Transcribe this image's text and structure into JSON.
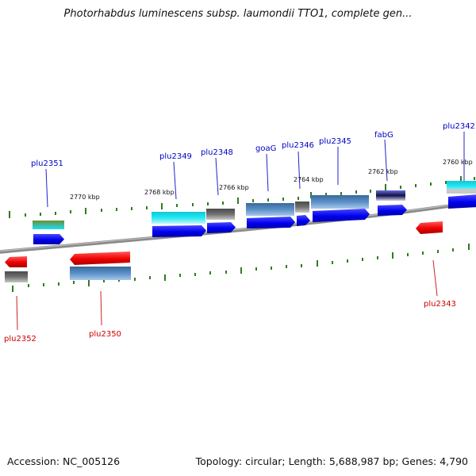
{
  "title": "Photorhabdus luminescens subsp. laumondii TTO1, complete gen...",
  "footer": {
    "accession": "Accession: NC_005126",
    "summary": "Topology: circular; Length: 5,688,987 bp; Genes: 4,790"
  },
  "colors": {
    "backbone": "#8c8c8c",
    "tick": "#2e7d1e",
    "forward_label": "#0000c8",
    "reverse_label": "#cc0000",
    "forward_gene": "#0000ee",
    "reverse_gene": "#ee0000",
    "feature_steelblue": "#4a80b8",
    "feature_cyan": "#19e1ee",
    "feature_gray": "#6a6a6a",
    "feature_darkblue": "#3a3aa0",
    "feature_olive": "#6b8f2a"
  },
  "scale_labels": [
    "2760 kbp",
    "2762 kbp",
    "2764 kbp",
    "2766 kbp",
    "2768 kbp",
    "2770 kbp"
  ],
  "forward_genes": [
    "plu2342",
    "fabG",
    "plu2345",
    "plu2346",
    "goaG",
    "plu2348",
    "plu2349",
    "plu2351"
  ],
  "reverse_genes": [
    "plu2343",
    "plu2350",
    "plu2352"
  ]
}
